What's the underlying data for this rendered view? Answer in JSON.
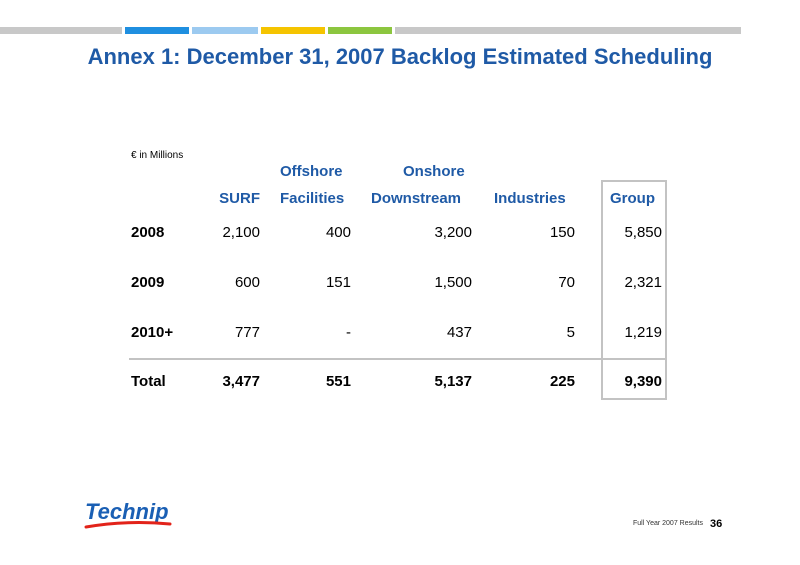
{
  "top_bar_colors": [
    "#c8c8c8",
    "#1f8fe0",
    "#9ccaf0",
    "#f5c400",
    "#8cc63f",
    "#c8c8c8"
  ],
  "title": "Annex 1: December 31, 2007 Backlog Estimated Scheduling",
  "unit_label": "€ in Millions",
  "columns": [
    {
      "line1": "",
      "line2": "SURF"
    },
    {
      "line1": "Offshore",
      "line2": "Facilities"
    },
    {
      "line1": "Onshore",
      "line2": "Downstream"
    },
    {
      "line1": "",
      "line2": "Industries"
    },
    {
      "line1": "",
      "line2": "Group"
    }
  ],
  "rows": [
    {
      "label": "2008",
      "values": [
        "2,100",
        "400",
        "3,200",
        "150",
        "5,850"
      ]
    },
    {
      "label": "2009",
      "values": [
        "600",
        "151",
        "1,500",
        "70",
        "2,321"
      ]
    },
    {
      "label": "2010+",
      "values": [
        "777",
        "-",
        "437",
        "5",
        "1,219"
      ]
    },
    {
      "label": "Total",
      "values": [
        "3,477",
        "551",
        "5,137",
        "225",
        "9,390"
      ]
    }
  ],
  "logo_text": "Technip",
  "footer_text": "Full Year 2007 Results",
  "page_number": "36",
  "colors": {
    "title_blue": "#1f5aa6",
    "logo_blue": "#1a5fb4",
    "logo_red": "#e2231a",
    "box_gray": "#c3c3c3"
  }
}
